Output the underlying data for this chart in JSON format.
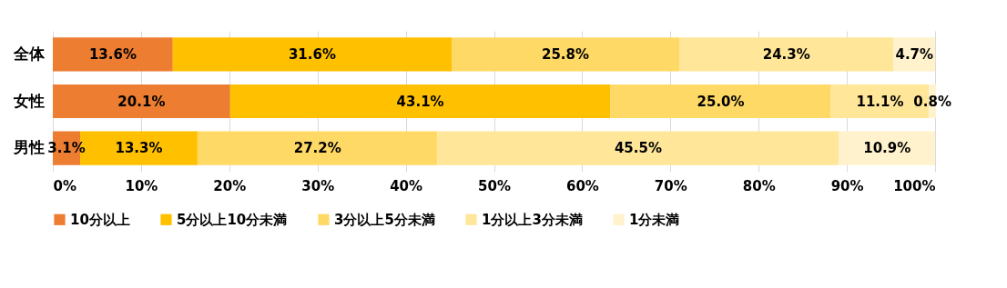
{
  "chart_data": {
    "type": "bar",
    "orientation": "horizontal",
    "stacked": true,
    "categories": [
      "全体",
      "女性",
      "男性"
    ],
    "series": [
      {
        "name": "10分以上",
        "color": "#ed7d31",
        "values": [
          13.6,
          20.1,
          3.1
        ]
      },
      {
        "name": "5分以上10分未満",
        "color": "#ffc000",
        "values": [
          31.6,
          43.1,
          13.3
        ]
      },
      {
        "name": "3分以上5分未満",
        "color": "#ffd966",
        "values": [
          25.8,
          25.0,
          27.2
        ]
      },
      {
        "name": "1分以上3分未満",
        "color": "#ffe699",
        "values": [
          24.3,
          11.1,
          45.5
        ]
      },
      {
        "name": "1分未満",
        "color": "#fff2cc",
        "values": [
          4.7,
          0.8,
          10.9
        ]
      }
    ],
    "value_labels": [
      [
        "13.6%",
        "20.1%",
        "3.1%"
      ],
      [
        "31.6%",
        "43.1%",
        "13.3%"
      ],
      [
        "25.8%",
        "25.0%",
        "27.2%"
      ],
      [
        "24.3%",
        "11.1%",
        "45.5%"
      ],
      [
        "4.7%",
        "0.8%",
        "10.9%"
      ]
    ],
    "xlim": [
      0,
      100.1
    ],
    "xticks": [
      {
        "value": 0,
        "label": "0%"
      },
      {
        "value": 10,
        "label": "10%"
      },
      {
        "value": 20,
        "label": "20%"
      },
      {
        "value": 30,
        "label": "30%"
      },
      {
        "value": 40,
        "label": "40%"
      },
      {
        "value": 50,
        "label": "50%"
      },
      {
        "value": 60,
        "label": "60%"
      },
      {
        "value": 70,
        "label": "70%"
      },
      {
        "value": 80,
        "label": "80%"
      },
      {
        "value": 90,
        "label": "90%"
      },
      {
        "value": 100,
        "label": "100%"
      }
    ],
    "grid": "x",
    "legend": "bottom"
  }
}
